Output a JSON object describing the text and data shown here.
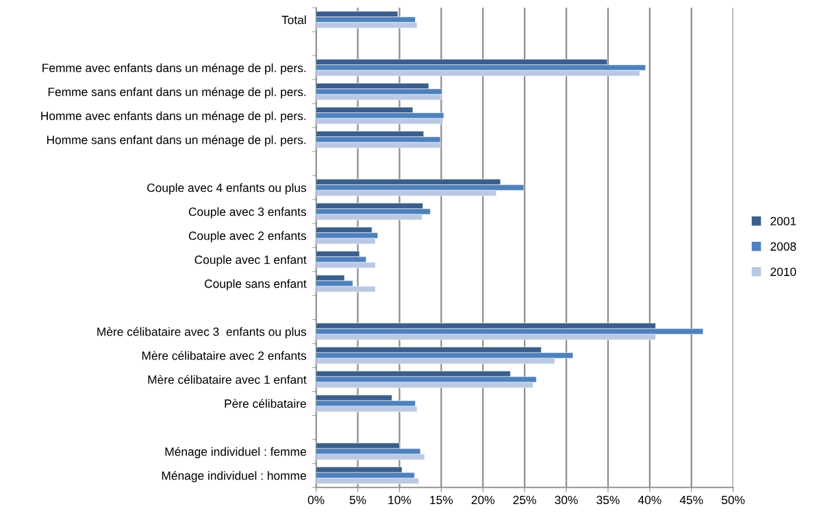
{
  "chart_data": {
    "type": "bar",
    "orientation": "horizontal",
    "categories": [
      "Total",
      null,
      "Femme avec enfants dans un ménage de pl. pers.",
      "Femme sans enfant dans un ménage de pl. pers.",
      "Homme avec enfants dans un ménage de pl. pers.",
      "Homme sans enfant dans un ménage de pl. pers.",
      null,
      "Couple avec 4 enfants ou plus",
      "Couple avec 3 enfants",
      "Couple avec 2 enfants",
      "Couple avec 1 enfant",
      "Couple sans enfant",
      null,
      "Mère célibataire avec 3  enfants ou plus",
      "Mère célibataire avec 2 enfants",
      "Mère célibataire avec 1 enfant",
      "Père célibataire",
      null,
      "Ménage individuel : femme",
      "Ménage individuel : homme"
    ],
    "series": [
      {
        "name": "2001",
        "color": "#3a5f8e",
        "values": [
          9.8,
          null,
          34.9,
          13.5,
          11.6,
          12.9,
          null,
          22.1,
          12.8,
          6.7,
          5.2,
          3.4,
          null,
          40.7,
          27.0,
          23.3,
          9.1,
          null,
          10.0,
          10.3
        ]
      },
      {
        "name": "2008",
        "color": "#4f81bd",
        "values": [
          11.9,
          null,
          39.5,
          15.1,
          15.3,
          14.9,
          null,
          24.9,
          13.7,
          7.4,
          6.0,
          4.4,
          null,
          46.4,
          30.8,
          26.4,
          11.9,
          null,
          12.5,
          11.8
        ]
      },
      {
        "name": "2010",
        "color": "#b9c9e3",
        "values": [
          12.1,
          null,
          38.8,
          15.0,
          15.2,
          14.9,
          null,
          21.6,
          12.7,
          7.1,
          7.1,
          7.1,
          null,
          40.7,
          28.6,
          26.0,
          12.1,
          null,
          13.0,
          12.3
        ]
      }
    ],
    "xlim": [
      0,
      50
    ],
    "xticks": [
      {
        "value": 0,
        "label": "0%"
      },
      {
        "value": 5,
        "label": "5%"
      },
      {
        "value": 10,
        "label": "10%"
      },
      {
        "value": 15,
        "label": "15%"
      },
      {
        "value": 20,
        "label": "20%"
      },
      {
        "value": 25,
        "label": "25%"
      },
      {
        "value": 30,
        "label": "30%"
      },
      {
        "value": 35,
        "label": "35%"
      },
      {
        "value": 40,
        "label": "40%"
      },
      {
        "value": 45,
        "label": "45%"
      },
      {
        "value": 50,
        "label": "50%"
      }
    ],
    "grid": "x",
    "legend": "right"
  }
}
